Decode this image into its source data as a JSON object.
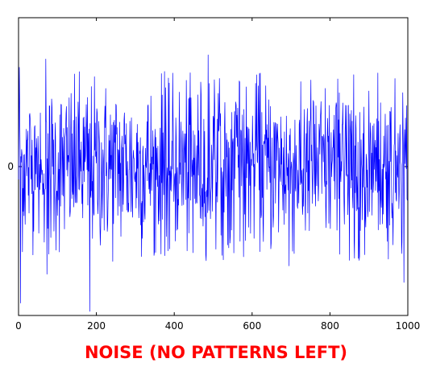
{
  "caption": "NOISE (NO PATTERNS LEFT)",
  "chart_data": {
    "type": "line",
    "title": "",
    "xlabel": "",
    "ylabel": "",
    "xlim": [
      0,
      1000
    ],
    "ylim": [
      -3.6,
      3.6
    ],
    "x_ticks": [
      0,
      200,
      400,
      600,
      800,
      1000
    ],
    "x_tick_labels": [
      "0",
      "200",
      "400",
      "600",
      "800",
      "1000"
    ],
    "y_ticks": [
      0
    ],
    "y_tick_labels": [
      "0"
    ],
    "grid": false,
    "legend": "none",
    "series": [
      {
        "color": "#0000ff",
        "n_points": 1000,
        "distribution": "gaussian white noise",
        "mean": 0,
        "std": 1,
        "notable_points": [
          {
            "x": 2,
            "y": 2.4
          },
          {
            "x": 5,
            "y": -3.3
          },
          {
            "x": 70,
            "y": 2.6
          },
          {
            "x": 73,
            "y": -2.6
          },
          {
            "x": 183,
            "y": -3.5
          },
          {
            "x": 375,
            "y": 2.3
          },
          {
            "x": 487,
            "y": 2.7
          },
          {
            "x": 695,
            "y": -2.4
          },
          {
            "x": 990,
            "y": -2.8
          }
        ]
      }
    ]
  }
}
